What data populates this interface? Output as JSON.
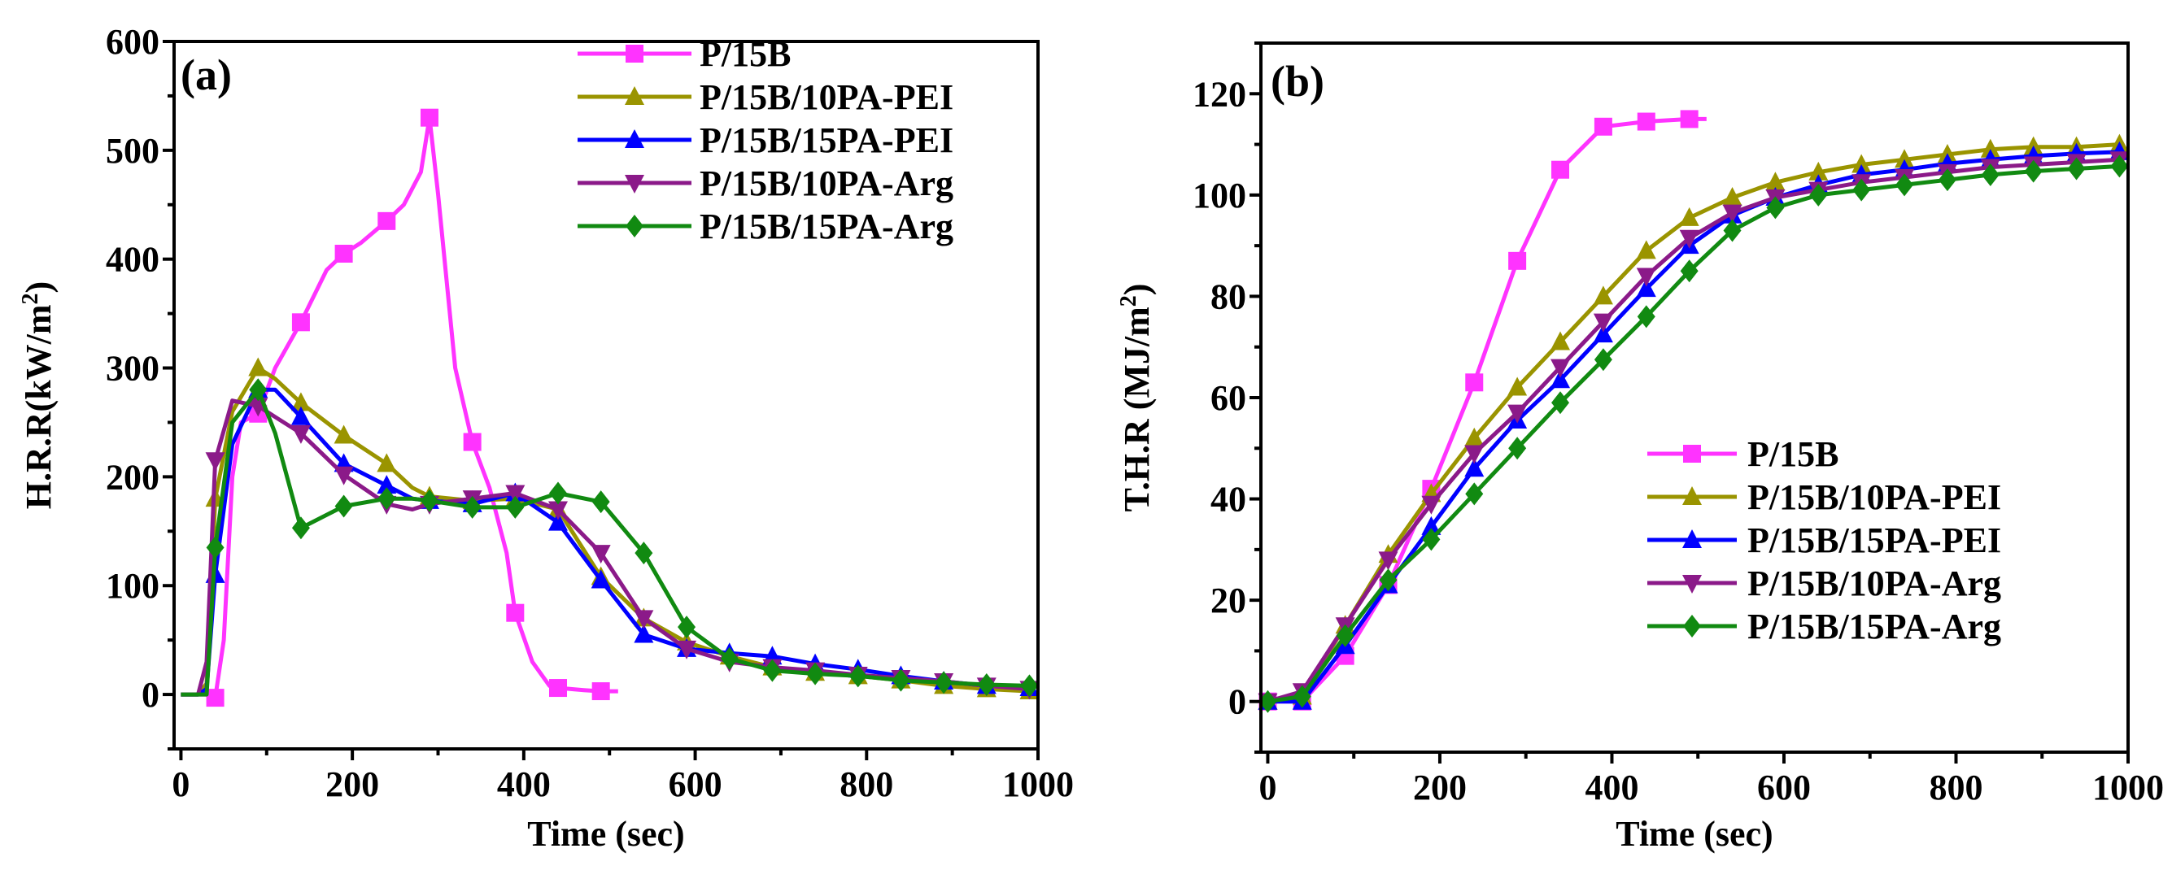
{
  "chart_data": [
    {
      "type": "line",
      "panel_label": "(a)",
      "xlabel": "Time (sec)",
      "ylabel": "H.R.R(kW/m",
      "ylabel_sup": "2",
      "ylabel_close": ")",
      "xlim": [
        -8,
        1000
      ],
      "ylim": [
        -50,
        600
      ],
      "xticks": [
        0,
        200,
        400,
        600,
        800,
        1000
      ],
      "yticks": [
        0,
        100,
        200,
        300,
        400,
        500,
        600
      ],
      "legend_position": "top-right",
      "series": [
        {
          "name": "P/15B",
          "color": "#FF33FF",
          "marker": "square",
          "x": [
            0,
            30,
            40,
            50,
            60,
            70,
            90,
            110,
            140,
            170,
            190,
            210,
            240,
            260,
            280,
            290,
            300,
            320,
            340,
            360,
            380,
            390,
            410,
            430,
            440,
            470,
            490,
            510
          ],
          "y": [
            0,
            0,
            -3,
            50,
            200,
            250,
            258,
            300,
            342,
            390,
            405,
            415,
            435,
            450,
            480,
            530,
            460,
            300,
            232,
            190,
            130,
            75,
            30,
            8,
            6,
            4,
            3,
            3
          ],
          "marker_x": [
            40,
            90,
            140,
            190,
            240,
            290,
            340,
            390,
            440,
            490
          ]
        },
        {
          "name": "P/15B/10PA-PEI",
          "color": "#9A9400",
          "marker": "triangle-up",
          "x": [
            0,
            20,
            30,
            40,
            60,
            90,
            110,
            140,
            190,
            240,
            270,
            290,
            340,
            390,
            440,
            490,
            540,
            590,
            640,
            690,
            740,
            790,
            840,
            890,
            940,
            990
          ],
          "y": [
            0,
            0,
            10,
            180,
            260,
            300,
            290,
            268,
            238,
            212,
            190,
            182,
            178,
            180,
            170,
            108,
            70,
            48,
            35,
            25,
            20,
            17,
            13,
            8,
            5,
            3
          ],
          "marker_x": [
            40,
            90,
            140,
            190,
            240,
            290,
            340,
            390,
            440,
            490,
            540,
            590,
            640,
            690,
            740,
            790,
            840,
            890,
            940,
            990
          ]
        },
        {
          "name": "P/15B/15PA-PEI",
          "color": "#0000FF",
          "marker": "triangle-up",
          "x": [
            0,
            20,
            30,
            40,
            60,
            90,
            110,
            140,
            190,
            240,
            270,
            290,
            340,
            390,
            440,
            490,
            540,
            590,
            640,
            690,
            740,
            790,
            840,
            890,
            940,
            990
          ],
          "y": [
            0,
            0,
            5,
            110,
            230,
            280,
            280,
            255,
            212,
            192,
            180,
            178,
            175,
            185,
            158,
            105,
            55,
            42,
            38,
            35,
            28,
            23,
            17,
            12,
            8,
            6
          ],
          "marker_x": [
            40,
            90,
            140,
            190,
            240,
            290,
            340,
            390,
            440,
            490,
            540,
            590,
            640,
            690,
            740,
            790,
            840,
            890,
            940,
            990
          ]
        },
        {
          "name": "P/15B/10PA-Arg",
          "color": "#8B1A89",
          "marker": "triangle-down",
          "x": [
            0,
            20,
            30,
            40,
            60,
            90,
            110,
            140,
            190,
            240,
            270,
            290,
            340,
            390,
            440,
            490,
            540,
            590,
            640,
            690,
            740,
            790,
            840,
            890,
            940,
            990
          ],
          "y": [
            0,
            0,
            30,
            215,
            270,
            265,
            255,
            240,
            202,
            175,
            170,
            175,
            180,
            185,
            170,
            130,
            70,
            42,
            30,
            25,
            22,
            18,
            15,
            12,
            8,
            5
          ],
          "marker_x": [
            40,
            90,
            140,
            190,
            240,
            290,
            340,
            390,
            440,
            490,
            540,
            590,
            640,
            690,
            740,
            790,
            840,
            890,
            940,
            990
          ]
        },
        {
          "name": "P/15B/15PA-Arg",
          "color": "#118A11",
          "marker": "diamond",
          "x": [
            0,
            20,
            30,
            40,
            60,
            90,
            110,
            140,
            190,
            240,
            270,
            290,
            340,
            390,
            440,
            490,
            540,
            590,
            640,
            690,
            740,
            790,
            840,
            890,
            940,
            990
          ],
          "y": [
            0,
            0,
            0,
            135,
            250,
            280,
            240,
            153,
            173,
            180,
            180,
            178,
            172,
            172,
            185,
            177,
            130,
            62,
            33,
            22,
            19,
            17,
            13,
            11,
            9,
            8
          ],
          "marker_x": [
            40,
            90,
            140,
            190,
            240,
            290,
            340,
            390,
            440,
            490,
            540,
            590,
            640,
            690,
            740,
            790,
            840,
            890,
            940,
            990
          ]
        }
      ]
    },
    {
      "type": "line",
      "panel_label": "(b)",
      "xlabel": "Time (sec)",
      "ylabel": "T.H.R (MJ/m",
      "ylabel_sup": "2",
      "ylabel_close": ")",
      "xlim": [
        -8,
        1000
      ],
      "ylim": [
        -10,
        130
      ],
      "xticks": [
        0,
        200,
        400,
        600,
        800,
        1000
      ],
      "yticks": [
        0,
        20,
        40,
        60,
        80,
        100,
        120
      ],
      "legend_position": "bottom-right",
      "series": [
        {
          "name": "P/15B",
          "color": "#FF33FF",
          "marker": "square",
          "x": [
            0,
            40,
            90,
            140,
            190,
            240,
            290,
            340,
            390,
            440,
            490,
            510
          ],
          "y": [
            0,
            0,
            9,
            23,
            42,
            63,
            87,
            105,
            113.5,
            114.5,
            115,
            115
          ],
          "marker_x": [
            0,
            40,
            90,
            140,
            190,
            240,
            290,
            340,
            390,
            440,
            490
          ]
        },
        {
          "name": "P/15B/10PA-PEI",
          "color": "#9A9400",
          "marker": "triangle-up",
          "x": [
            0,
            40,
            90,
            140,
            190,
            240,
            290,
            340,
            390,
            440,
            490,
            540,
            590,
            640,
            690,
            740,
            790,
            840,
            890,
            940,
            990
          ],
          "y": [
            0,
            1,
            15,
            29,
            41,
            52,
            62,
            71,
            80,
            89,
            95.5,
            99.5,
            102.5,
            104.5,
            106,
            107,
            108,
            109,
            109.5,
            109.5,
            110
          ],
          "marker_x": [
            0,
            40,
            90,
            140,
            190,
            240,
            290,
            340,
            390,
            440,
            490,
            540,
            590,
            640,
            690,
            740,
            790,
            840,
            890,
            940,
            990
          ]
        },
        {
          "name": "P/15B/15PA-PEI",
          "color": "#0000FF",
          "marker": "triangle-up",
          "x": [
            0,
            40,
            90,
            140,
            190,
            240,
            290,
            340,
            390,
            440,
            490,
            540,
            590,
            640,
            690,
            740,
            790,
            840,
            890,
            940,
            990
          ],
          "y": [
            0,
            0,
            11,
            23,
            34.5,
            46,
            55.5,
            63.5,
            72.5,
            81.5,
            90,
            96,
            99.5,
            102,
            104,
            105,
            106.2,
            107,
            107.7,
            108.2,
            108.5
          ],
          "marker_x": [
            0,
            40,
            90,
            140,
            190,
            240,
            290,
            340,
            390,
            440,
            490,
            540,
            590,
            640,
            690,
            740,
            790,
            840,
            890,
            940,
            990
          ]
        },
        {
          "name": "P/15B/10PA-Arg",
          "color": "#8B1A89",
          "marker": "triangle-down",
          "x": [
            0,
            40,
            90,
            140,
            190,
            240,
            290,
            340,
            390,
            440,
            490,
            540,
            590,
            640,
            690,
            740,
            790,
            840,
            890,
            940,
            990
          ],
          "y": [
            0,
            2,
            15,
            28,
            39,
            49,
            57,
            66,
            75,
            84,
            91.5,
            96.5,
            99.5,
            101,
            102.5,
            103.5,
            104.5,
            105.5,
            106,
            106.5,
            107
          ],
          "marker_x": [
            0,
            40,
            90,
            140,
            190,
            240,
            290,
            340,
            390,
            440,
            490,
            540,
            590,
            640,
            690,
            740,
            790,
            840,
            890,
            940,
            990
          ]
        },
        {
          "name": "P/15B/15PA-Arg",
          "color": "#118A11",
          "marker": "diamond",
          "x": [
            0,
            40,
            90,
            140,
            190,
            240,
            290,
            340,
            390,
            440,
            490,
            540,
            590,
            640,
            690,
            740,
            790,
            840,
            890,
            940,
            990
          ],
          "y": [
            0,
            1,
            13,
            24,
            32,
            41,
            50,
            59,
            67.5,
            76,
            85,
            93,
            97.5,
            100,
            101,
            102,
            103,
            104,
            104.7,
            105.2,
            105.7
          ],
          "marker_x": [
            0,
            40,
            90,
            140,
            190,
            240,
            290,
            340,
            390,
            440,
            490,
            540,
            590,
            640,
            690,
            740,
            790,
            840,
            890,
            940,
            990
          ]
        }
      ]
    }
  ]
}
